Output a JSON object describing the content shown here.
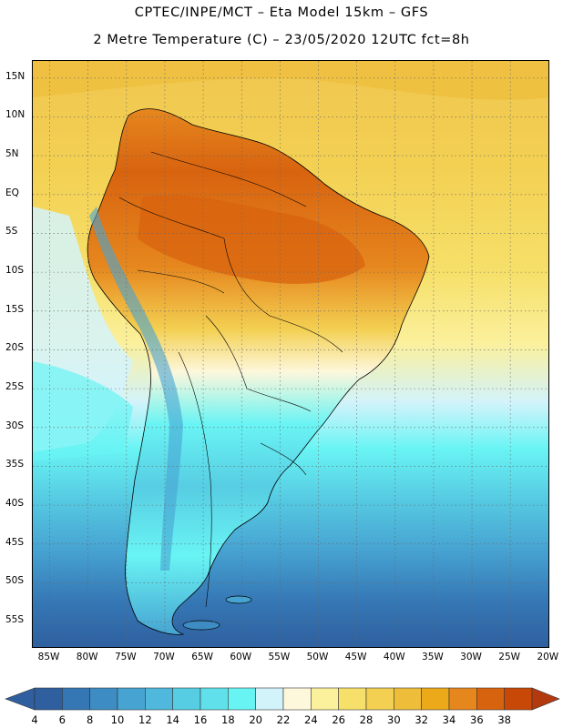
{
  "title": {
    "line1": "CPTEC/INPE/MCT –  Eta Model 15km – GFS",
    "line2": "2 Metre Temperature (C) – 23/05/2020 12UTC fct=8h"
  },
  "map": {
    "region": "South America",
    "lat_labels": [
      "15N",
      "10N",
      "5N",
      "EQ",
      "5S",
      "10S",
      "15S",
      "20S",
      "25S",
      "30S",
      "35S",
      "40S",
      "45S",
      "50S",
      "55S"
    ],
    "lat_values": [
      15,
      10,
      5,
      0,
      -5,
      -10,
      -15,
      -20,
      -25,
      -30,
      -35,
      -40,
      -45,
      -50,
      -55
    ],
    "lon_labels": [
      "85W",
      "80W",
      "75W",
      "70W",
      "65W",
      "60W",
      "55W",
      "50W",
      "45W",
      "40W",
      "35W",
      "30W",
      "25W",
      "20W"
    ],
    "lon_values": [
      -85,
      -80,
      -75,
      -70,
      -65,
      -60,
      -55,
      -50,
      -45,
      -40,
      -35,
      -30,
      -25,
      -20
    ]
  },
  "colorbar": {
    "labels": [
      "4",
      "6",
      "8",
      "10",
      "12",
      "14",
      "16",
      "18",
      "20",
      "22",
      "24",
      "26",
      "28",
      "30",
      "32",
      "34",
      "36",
      "38"
    ],
    "colors": [
      "#2f5f9e",
      "#3577b5",
      "#3d8cc4",
      "#47a4d2",
      "#4fb8dc",
      "#57cde3",
      "#5fe0ea",
      "#69f4f4",
      "#d3f3fb",
      "#fdf7dc",
      "#fbf09c",
      "#f6e06a",
      "#f3d052",
      "#eebd3a",
      "#eca91a",
      "#e6871e",
      "#d8630f",
      "#c84808",
      "#b33a0e"
    ]
  }
}
